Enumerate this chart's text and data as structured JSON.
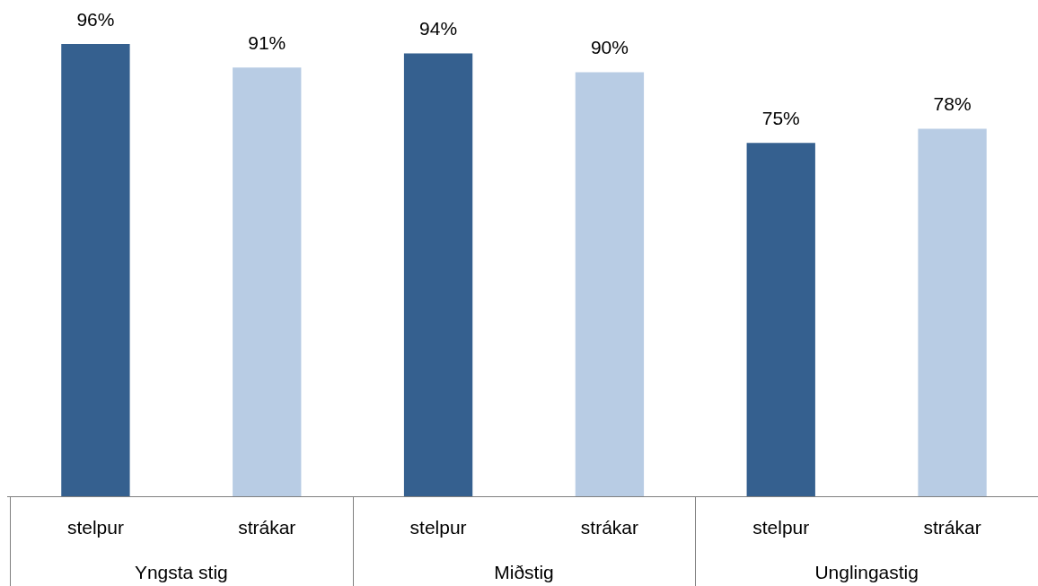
{
  "chart_data": {
    "type": "bar",
    "categories": [
      "Yngsta stig",
      "Miðstig",
      "Unglingastig"
    ],
    "series": [
      {
        "name": "stelpur",
        "color": "#35608f",
        "values": [
          96,
          94,
          75
        ],
        "value_labels": [
          "96%",
          "94%",
          "75%"
        ]
      },
      {
        "name": "strákar",
        "color": "#b8cce4",
        "values": [
          91,
          90,
          78
        ],
        "value_labels": [
          "91%",
          "90%",
          "78%"
        ]
      }
    ],
    "legend": false
  }
}
